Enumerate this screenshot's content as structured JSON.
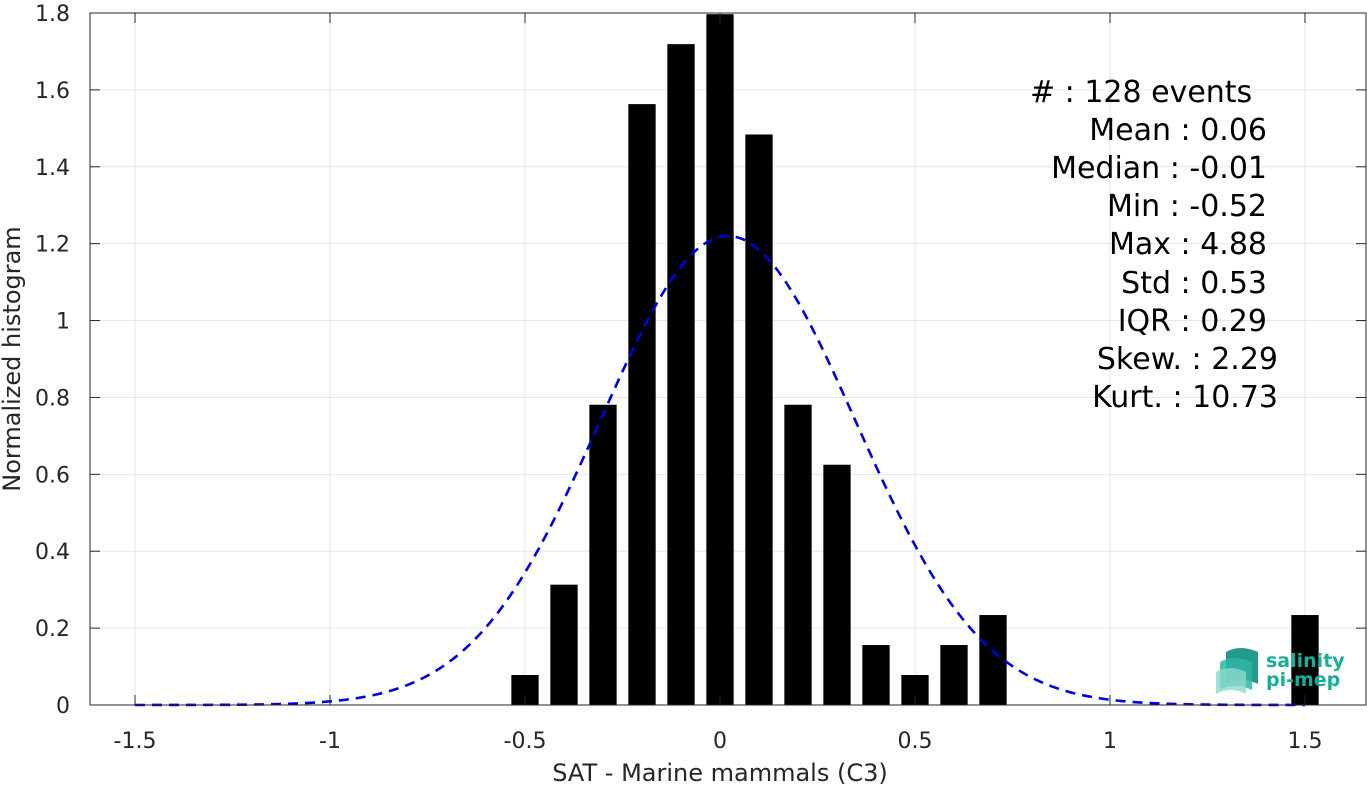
{
  "chart_data": {
    "type": "bar",
    "xlabel": "SAT - Marine mammals (C3)",
    "ylabel": "Normalized histogram",
    "xlim": [
      -1.5,
      1.5
    ],
    "ylim": [
      0,
      1.8
    ],
    "xticks": [
      "-1.5",
      "-1",
      "-0.5",
      "0",
      "0.5",
      "1",
      "1.5"
    ],
    "yticks": [
      "0",
      "0.2",
      "0.4",
      "0.6",
      "0.8",
      "1",
      "1.2",
      "1.4",
      "1.6",
      "1.8"
    ],
    "grid": true,
    "bar_color": "#000000",
    "bars": [
      {
        "x": -0.5,
        "value": 0.078
      },
      {
        "x": -0.4,
        "value": 0.313
      },
      {
        "x": -0.3,
        "value": 0.781
      },
      {
        "x": -0.2,
        "value": 1.563
      },
      {
        "x": -0.1,
        "value": 1.719
      },
      {
        "x": 0.0,
        "value": 1.797
      },
      {
        "x": 0.1,
        "value": 1.484
      },
      {
        "x": 0.2,
        "value": 0.781
      },
      {
        "x": 0.3,
        "value": 0.625
      },
      {
        "x": 0.4,
        "value": 0.156
      },
      {
        "x": 0.5,
        "value": 0.078
      },
      {
        "x": 0.6,
        "value": 0.156
      },
      {
        "x": 0.7,
        "value": 0.234
      },
      {
        "x": 1.5,
        "value": 0.234
      }
    ],
    "bar_width": 0.07,
    "fit_curve": {
      "style": "dashed",
      "color": "#0000dd",
      "mean": 0.02,
      "sd": 0.327,
      "x_start": -1.5,
      "x_end": 1.5
    }
  },
  "stats": {
    "count": "#  : 128 events",
    "mean": "Mean : 0.06",
    "median": "Median : -0.01",
    "min": "Min : -0.52",
    "max": "Max : 4.88",
    "std": "Std : 0.53",
    "iqr": "IQR : 0.29",
    "skew": "Skew. : 2.29",
    "kurt": "Kurt. : 10.73"
  },
  "logo": {
    "line1": "salinity",
    "line2": "pi-mep",
    "color": "#1aae9a"
  }
}
